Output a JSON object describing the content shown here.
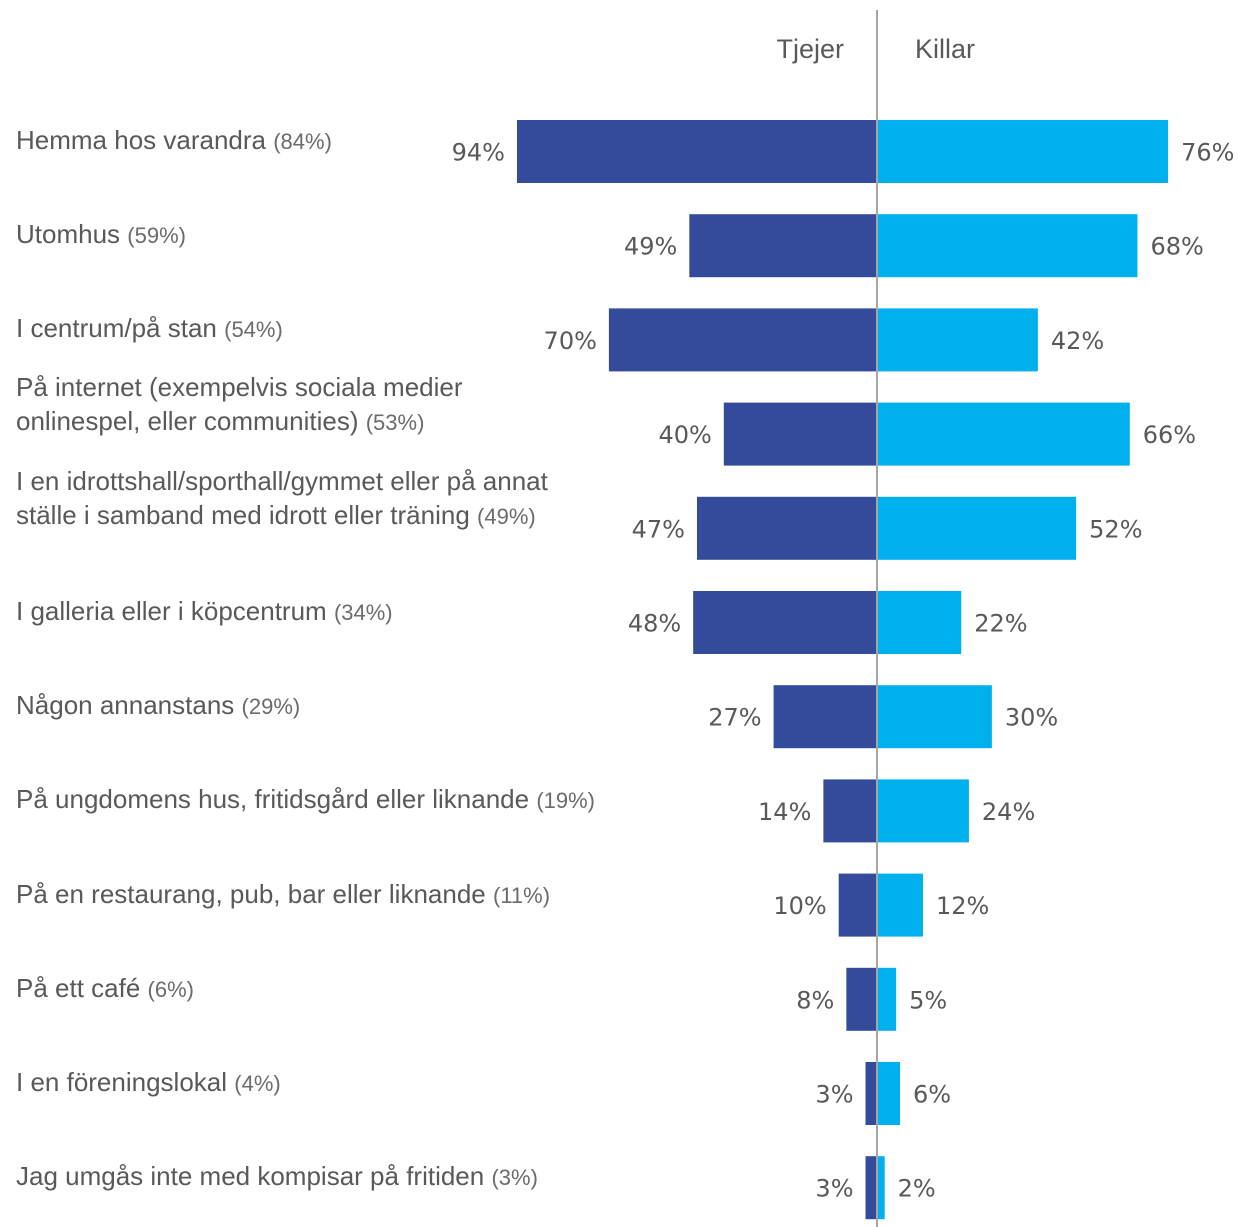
{
  "chart_data": {
    "type": "bar",
    "orientation": "horizontal-diverging",
    "colors": {
      "Tjejer": "#344b9b",
      "Killar": "#00b0ec"
    },
    "series": [
      {
        "name": "Tjejer",
        "values": [
          94,
          49,
          70,
          40,
          47,
          48,
          27,
          14,
          10,
          8,
          3,
          3
        ]
      },
      {
        "name": "Killar",
        "values": [
          76,
          68,
          42,
          66,
          52,
          22,
          30,
          24,
          12,
          5,
          6,
          2
        ]
      }
    ],
    "categories": [
      {
        "lines": [
          "Hemma hos varandra"
        ],
        "total": "(84%)"
      },
      {
        "lines": [
          "Utomhus"
        ],
        "total": "(59%)"
      },
      {
        "lines": [
          "I centrum/på stan"
        ],
        "total": "(54%)"
      },
      {
        "lines": [
          "På internet (exempelvis sociala medier",
          "onlinespel, eller communities)"
        ],
        "total": "(53%)"
      },
      {
        "lines": [
          "I en idrottshall/sporthall/gymmet eller på annat",
          "ställe i samband med idrott eller träning"
        ],
        "total": "(49%)"
      },
      {
        "lines": [
          "I galleria eller i köpcentrum"
        ],
        "total": "(34%)"
      },
      {
        "lines": [
          "Någon annanstans"
        ],
        "total": "(29%)"
      },
      {
        "lines": [
          "På ungdomens hus, fritidsgård eller liknande"
        ],
        "total": "(19%)"
      },
      {
        "lines": [
          "På en restaurang, pub, bar eller liknande"
        ],
        "total": "(11%)"
      },
      {
        "lines": [
          "På ett café"
        ],
        "total": "(6%)"
      },
      {
        "lines": [
          "I en föreningslokal"
        ],
        "total": "(4%)"
      },
      {
        "lines": [
          "Jag umgås inte med kompisar på fritiden"
        ],
        "total": "(3%)"
      }
    ],
    "value_suffix": "%",
    "legend": "top-center",
    "grid": false
  }
}
